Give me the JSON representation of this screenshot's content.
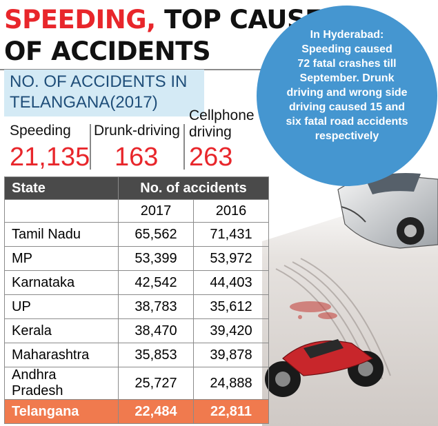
{
  "headline": {
    "red": "SPEEDING,",
    "rest": " TOP CAUSE",
    "line2": "OF ACCIDENTS"
  },
  "subhead": "NO. OF ACCIDENTS IN TELANGANA(2017)",
  "stats": [
    {
      "label": "Speeding",
      "value": "21,135"
    },
    {
      "label": "Drunk-driving",
      "value": "163"
    },
    {
      "label": "Cellphone driving",
      "value": "263"
    }
  ],
  "callout": [
    "In Hyderabad:",
    "Speeding caused",
    "72 fatal crashes till",
    "September. Drunk",
    "driving and wrong side",
    "driving caused 15 and",
    "six fatal road accidents",
    "respectively"
  ],
  "table": {
    "header_state": "State",
    "header_group": "No. of accidents",
    "years": [
      "2017",
      "2016"
    ],
    "rows": [
      {
        "state": "Tamil Nadu",
        "y2017": "65,562",
        "y2016": "71,431"
      },
      {
        "state": "MP",
        "y2017": "53,399",
        "y2016": "53,972"
      },
      {
        "state": "Karnataka",
        "y2017": "42,542",
        "y2016": "44,403"
      },
      {
        "state": "UP",
        "y2017": "38,783",
        "y2016": "35,612"
      },
      {
        "state": "Kerala",
        "y2017": "38,470",
        "y2016": "39,420"
      },
      {
        "state": "Maharashtra",
        "y2017": "35,853",
        "y2016": "39,878"
      },
      {
        "state": "Andhra Pradesh",
        "y2017": "25,727",
        "y2016": "24,888"
      }
    ],
    "highlight": {
      "state": "Telangana",
      "y2017": "22,484",
      "y2016": "22,811"
    }
  },
  "colors": {
    "accent_red": "#e8262b",
    "bubble_blue": "#4596d0",
    "highlight_row": "#f07a4e",
    "header_dark": "#4a4a4a"
  }
}
